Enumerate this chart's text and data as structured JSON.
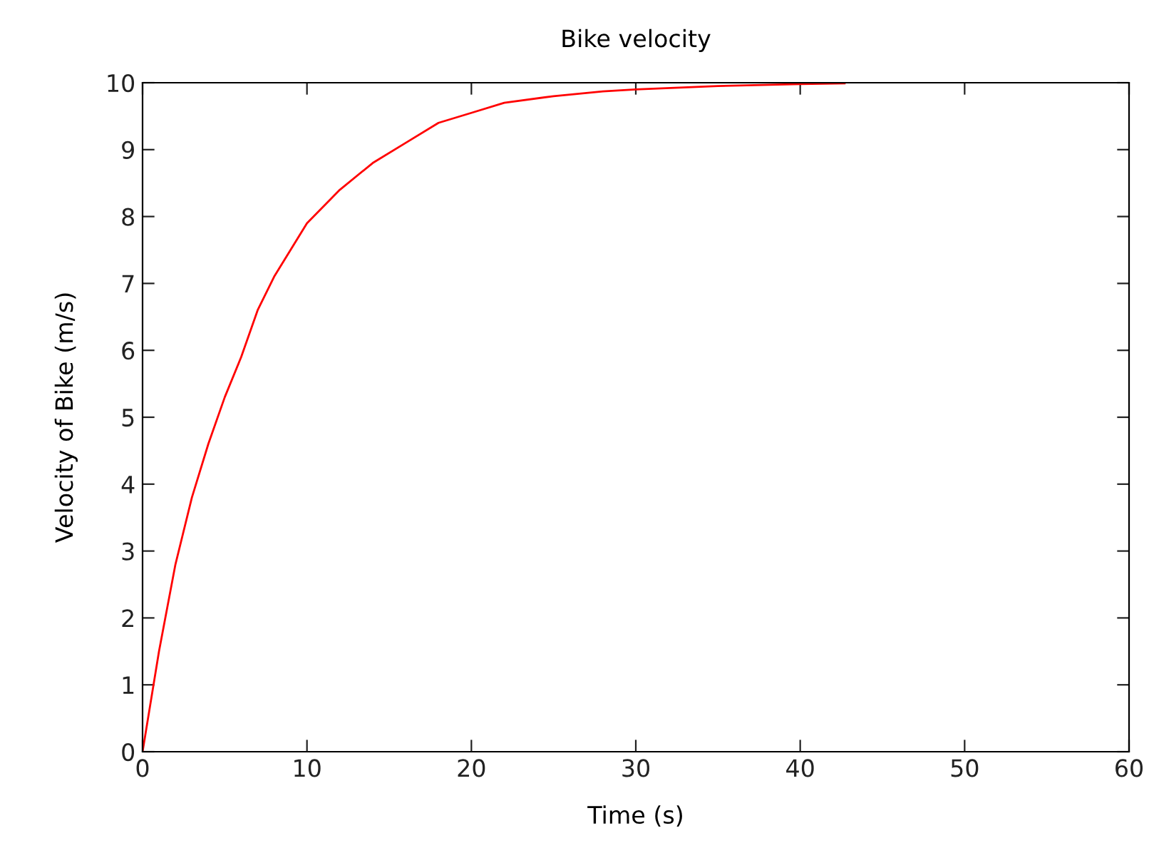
{
  "chart_data": {
    "type": "line",
    "title": "Bike velocity",
    "xlabel": "Time (s)",
    "ylabel": "Velocity of Bike (m/s)",
    "series": [
      {
        "color": "#ff0000",
        "x": [
          0,
          1,
          2,
          3,
          4,
          5,
          6,
          7,
          8,
          9,
          10,
          12,
          14,
          16,
          18,
          20,
          22,
          25,
          28,
          30,
          35,
          40,
          42.7
        ],
        "values": [
          0,
          1.5,
          2.8,
          3.8,
          4.6,
          5.3,
          5.9,
          6.6,
          7.1,
          7.5,
          7.9,
          8.4,
          8.8,
          9.1,
          9.4,
          9.55,
          9.7,
          9.8,
          9.87,
          9.9,
          9.95,
          9.98,
          9.99
        ]
      }
    ],
    "xlim": [
      0,
      60
    ],
    "ylim": [
      0,
      10
    ],
    "xticks": [
      0,
      10,
      20,
      30,
      40,
      50,
      60
    ],
    "yticks": [
      0,
      1,
      2,
      3,
      4,
      5,
      6,
      7,
      8,
      9,
      10
    ],
    "grid": false,
    "legend": false,
    "marker": "none",
    "line_style": "solid"
  }
}
